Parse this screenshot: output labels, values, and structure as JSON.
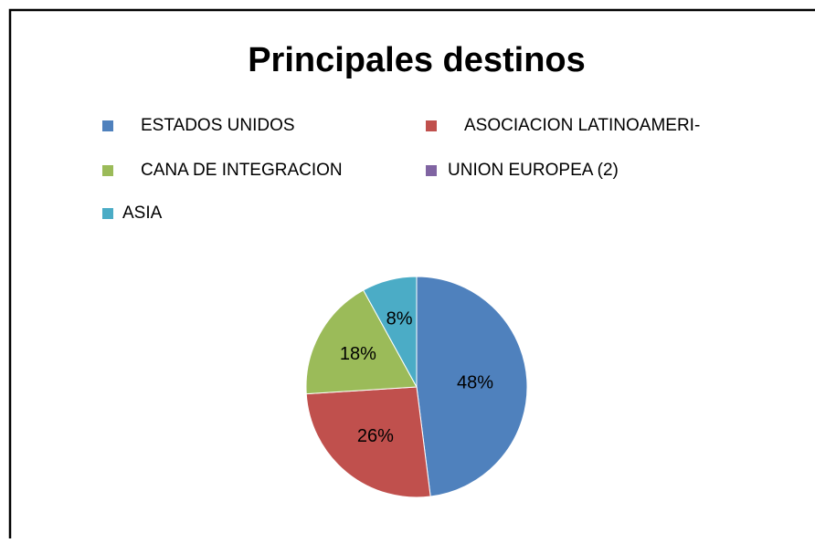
{
  "chart_data": {
    "type": "pie",
    "title": "Principales destinos",
    "categories": [
      "ESTADOS UNIDOS",
      "ASOCIACION LATINOAMERI-",
      "CANA DE INTEGRACION",
      "UNION EUROPEA (2)",
      "ASIA"
    ],
    "values": [
      48,
      26,
      18,
      null,
      8
    ],
    "value_labels": [
      "48%",
      "26%",
      "18%",
      null,
      "8%"
    ],
    "colors": [
      "#4f81bd",
      "#c0504d",
      "#9bbb59",
      "#8064a2",
      "#4bacc6"
    ],
    "legend": "top"
  }
}
